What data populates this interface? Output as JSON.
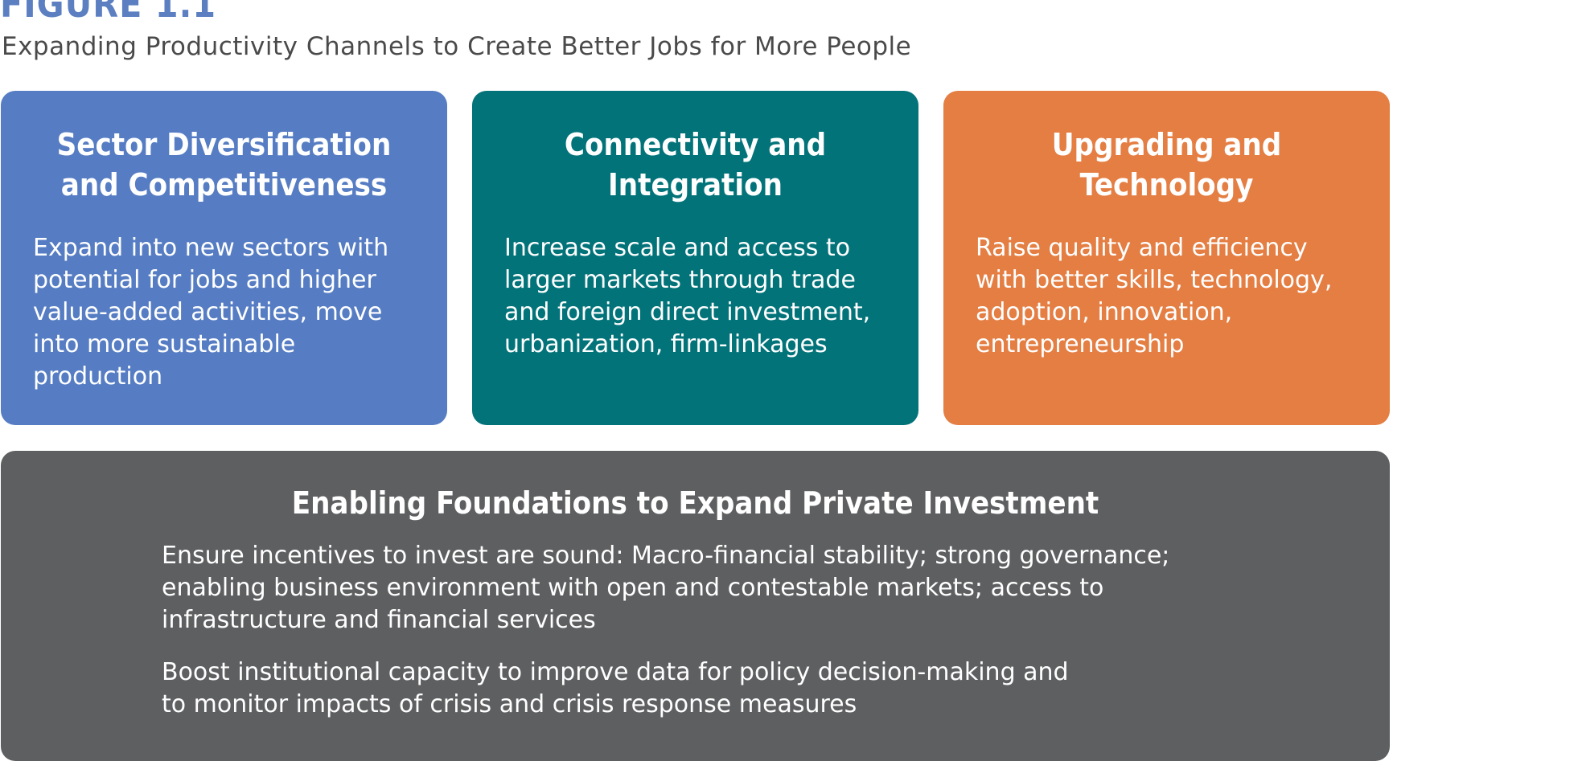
{
  "figure": {
    "label": "FIGURE 1.1",
    "subtitle": "Expanding Productivity Channels to Create Better Jobs for More People"
  },
  "channels": [
    {
      "title": "Sector Diversification and Competitiveness",
      "body": "Expand into new sectors with\npotential for jobs and higher\nvalue-added activities, move\ninto more sustainable\nproduction",
      "color": "#567dc3"
    },
    {
      "title": "Connectivity and Integration",
      "body": "Increase scale and access to\nlarger markets through trade\nand foreign direct investment,\nurbanization, firm-linkages",
      "color": "#03737a"
    },
    {
      "title": "Upgrading and Technology",
      "body": "Raise quality and efficiency\nwith better skills, technology,\nadoption, innovation,\nentrepreneurship",
      "color": "#e47e43"
    }
  ],
  "foundation": {
    "title": "Enabling Foundations to Expand Private Investment",
    "items": [
      "Ensure incentives to invest are sound: Macro-financial stability; strong governance;\nenabling business environment with open and contestable markets; access to\ninfrastructure and financial services",
      "Boost institutional capacity to improve data for policy decision-making and\nto monitor impacts of crisis and crisis response measures"
    ],
    "color": "#5e5f61"
  }
}
